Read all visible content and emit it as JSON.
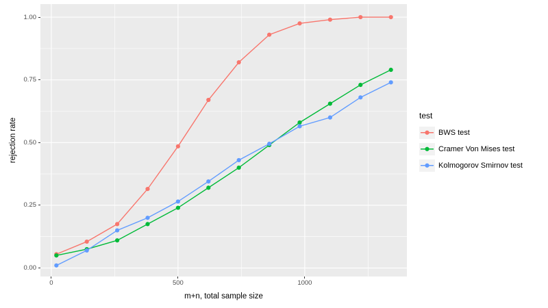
{
  "chart_data": {
    "type": "line",
    "title": "",
    "xlabel": "m+n, total sample size",
    "ylabel": "rejection rate",
    "x": [
      20,
      140,
      260,
      380,
      500,
      620,
      740,
      860,
      980,
      1100,
      1220,
      1340
    ],
    "series": [
      {
        "name": "BWS test",
        "color": "#F8766D",
        "values": [
          0.055,
          0.105,
          0.175,
          0.315,
          0.485,
          0.67,
          0.82,
          0.93,
          0.975,
          0.99,
          1.0,
          1.0
        ]
      },
      {
        "name": "Cramer Von Mises test",
        "color": "#00BA38",
        "values": [
          0.05,
          0.075,
          0.11,
          0.175,
          0.24,
          0.32,
          0.4,
          0.49,
          0.58,
          0.655,
          0.73,
          0.79
        ]
      },
      {
        "name": "Kolmogorov Smirnov test",
        "color": "#619CFF",
        "values": [
          0.01,
          0.07,
          0.15,
          0.2,
          0.265,
          0.345,
          0.43,
          0.495,
          0.565,
          0.6,
          0.68,
          0.74
        ]
      }
    ],
    "legend": {
      "title": "test",
      "position": "right"
    },
    "x_ticks": [
      {
        "value": 0,
        "label": "0"
      },
      {
        "value": 500,
        "label": "500"
      },
      {
        "value": 1000,
        "label": "1000"
      }
    ],
    "y_ticks": [
      {
        "value": 0.0,
        "label": "0.00"
      },
      {
        "value": 0.25,
        "label": "0.25"
      },
      {
        "value": 0.5,
        "label": "0.50"
      },
      {
        "value": 0.75,
        "label": "0.75"
      },
      {
        "value": 1.0,
        "label": "1.00"
      }
    ],
    "x_minor": [
      250,
      750,
      1250
    ],
    "y_minor": [
      0.125,
      0.375,
      0.625,
      0.875
    ],
    "x_domain": [
      -43,
      1403
    ],
    "y_domain": [
      -0.034,
      1.052
    ],
    "grid": true,
    "panel_bg": "#EBEBEB",
    "grid_color": "#FFFFFF",
    "tick_color": "#333333",
    "tick_label_color": "#4D4D4D",
    "point_radius": 3.1,
    "line_width": 1.4
  }
}
